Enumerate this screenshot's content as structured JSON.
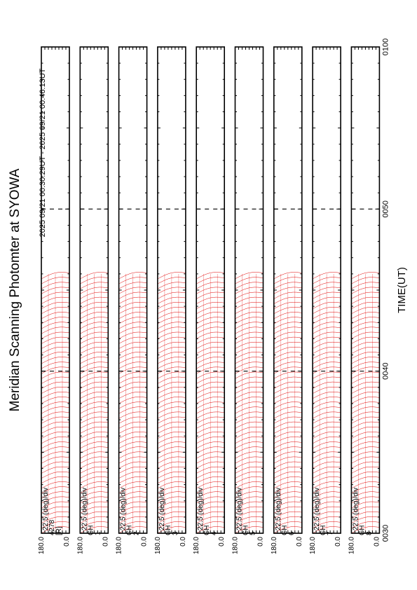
{
  "chart_data": {
    "type": "line",
    "title": "Meridian Scanning Photomter at SYOWA",
    "subtitle": "2025 09/21 00:30:29UT - 2025 09/21 00:46:13UT",
    "xlabel": "TIME(UT)",
    "x_ticks": [
      "0030",
      "0040",
      "0050",
      "0100"
    ],
    "x_range_minutes": [
      0,
      30
    ],
    "data_end_minute": 16.0,
    "scale_label": "22.5 (deg)/div",
    "ylim": [
      0.0,
      180.0
    ],
    "y_tick_labels": [
      "180.0",
      "0.0"
    ],
    "panels": [
      {
        "name": "4278",
        "label_top": "4278",
        "label_bottom": "[R]"
      },
      {
        "name": "CH1",
        "label_top": "CH",
        "label_bottom": "1"
      },
      {
        "name": "CH2",
        "label_top": "CH",
        "label_bottom": "2"
      },
      {
        "name": "CH3",
        "label_top": "CH",
        "label_bottom": "3"
      },
      {
        "name": "CH4",
        "label_top": "CH",
        "label_bottom": "4"
      },
      {
        "name": "CH5",
        "label_top": "CH",
        "label_bottom": "5"
      },
      {
        "name": "CH6",
        "label_top": "CH",
        "label_bottom": "6"
      },
      {
        "name": "CH7",
        "label_top": "CH",
        "label_bottom": "7"
      },
      {
        "name": "CH8",
        "label_top": "CH",
        "label_bottom": "8"
      }
    ],
    "scan_count": 52,
    "line_color": "#e00000",
    "axis_color": "#000000"
  }
}
